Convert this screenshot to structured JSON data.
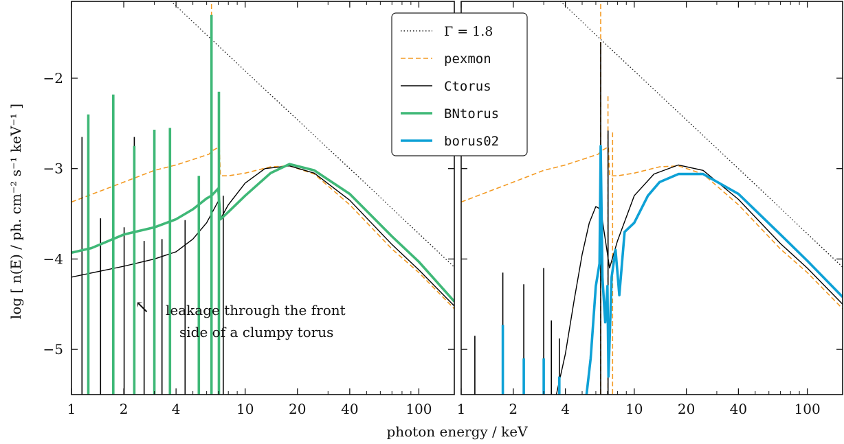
{
  "figure": {
    "ylabel": "log [ n(E) / ph. cm⁻² s⁻¹ keV⁻¹ ]",
    "xlabel": "photon energy / keV"
  },
  "legend": {
    "placement": "top-center",
    "entries": [
      {
        "label": "Γ = 1.8",
        "color": "#222222",
        "style": "dotted"
      },
      {
        "label": "pexmon",
        "color": "#f39a22",
        "style": "dashed"
      },
      {
        "label": "Ctorus",
        "color": "#000000",
        "style": "solid"
      },
      {
        "label": "BNtorus",
        "color": "#3fb877",
        "style": "thick"
      },
      {
        "label": "borus02",
        "color": "#0ea1d6",
        "style": "thick"
      }
    ]
  },
  "annotation": {
    "arrow_glyph": "↖",
    "line1": "leakage through the front",
    "line2": "side of a clumpy torus"
  },
  "chart_data": [
    {
      "type": "line",
      "panel": "left",
      "x_scale": "log",
      "xlim": [
        1,
        160
      ],
      "ylim": [
        -5.5,
        -1.15
      ],
      "x_ticks": [
        1,
        2,
        4,
        10,
        20,
        40,
        100
      ],
      "y_ticks": [
        -5,
        -4,
        -3,
        -2
      ],
      "ylabel": "log [ n(E) / ph. cm⁻² s⁻¹ keV⁻¹ ]",
      "series": [
        {
          "name": "Γ = 1.8",
          "x": [
            1,
            4,
            6,
            10,
            20,
            40,
            100,
            160
          ],
          "y": [
            -0.12,
            -1.2,
            -1.52,
            -1.92,
            -2.46,
            -3.0,
            -3.72,
            -4.09
          ]
        },
        {
          "name": "pexmon",
          "x": [
            1,
            2,
            3,
            4,
            5,
            6.2,
            6.5,
            7.1,
            7.2,
            8,
            10,
            14,
            18,
            25,
            40,
            70,
            100,
            160
          ],
          "y": [
            -3.37,
            -3.15,
            -3.02,
            -2.96,
            -2.9,
            -2.84,
            -2.8,
            -2.76,
            -3.08,
            -3.08,
            -3.05,
            -2.98,
            -2.97,
            -3.06,
            -3.4,
            -3.89,
            -4.15,
            -4.55
          ],
          "lines": [
            {
              "x": 6.4,
              "top": -1.18
            },
            {
              "x": 7.05,
              "top": -2.6
            }
          ]
        },
        {
          "name": "Ctorus",
          "x": [
            1,
            2,
            3,
            4,
            5,
            6,
            6.4,
            7.0,
            7.1,
            8,
            10,
            13,
            18,
            25,
            40,
            70,
            100,
            160
          ],
          "y": [
            -4.2,
            -4.08,
            -4.0,
            -3.92,
            -3.78,
            -3.6,
            -3.5,
            -3.36,
            -3.58,
            -3.4,
            -3.16,
            -3.0,
            -2.97,
            -3.05,
            -3.35,
            -3.84,
            -4.12,
            -4.52
          ],
          "lines": [
            {
              "x": 1.15,
              "top": -2.65
            },
            {
              "x": 1.47,
              "top": -3.55
            },
            {
              "x": 1.74,
              "top": -2.52
            },
            {
              "x": 2.01,
              "top": -3.65
            },
            {
              "x": 2.3,
              "top": -2.65
            },
            {
              "x": 2.62,
              "top": -3.8
            },
            {
              "x": 3.0,
              "top": -2.72
            },
            {
              "x": 3.32,
              "top": -3.78
            },
            {
              "x": 3.69,
              "top": -3.0
            },
            {
              "x": 4.51,
              "top": -3.57
            },
            {
              "x": 5.41,
              "top": -3.5
            },
            {
              "x": 6.4,
              "top": -1.6
            },
            {
              "x": 7.06,
              "top": -2.4
            },
            {
              "x": 7.48,
              "top": -3.3
            }
          ]
        },
        {
          "name": "BNtorus",
          "x": [
            1,
            1.3,
            2,
            3,
            4,
            5,
            6,
            6.4,
            7.0,
            7.2,
            8,
            10,
            14,
            18,
            25,
            40,
            70,
            100,
            160
          ],
          "y": [
            -3.93,
            -3.88,
            -3.73,
            -3.65,
            -3.56,
            -3.45,
            -3.33,
            -3.3,
            -3.22,
            -3.56,
            -3.48,
            -3.3,
            -3.05,
            -2.95,
            -3.02,
            -3.28,
            -3.75,
            -4.03,
            -4.47
          ],
          "lines": [
            {
              "x": 1.25,
              "top": -2.4
            },
            {
              "x": 1.74,
              "top": -2.18
            },
            {
              "x": 2.3,
              "top": -2.75
            },
            {
              "x": 3.0,
              "top": -2.57
            },
            {
              "x": 3.69,
              "top": -2.55
            },
            {
              "x": 5.41,
              "top": -3.08
            },
            {
              "x": 6.4,
              "top": -1.3
            },
            {
              "x": 7.06,
              "top": -2.15
            }
          ]
        }
      ]
    },
    {
      "type": "line",
      "panel": "right",
      "x_scale": "log",
      "xlim": [
        1,
        160
      ],
      "ylim": [
        -5.5,
        -1.15
      ],
      "x_ticks": [
        1,
        2,
        4,
        10,
        20,
        40,
        100
      ],
      "y_ticks": [
        -5,
        -4,
        -3,
        -2
      ],
      "series": [
        {
          "name": "Γ = 1.8",
          "x": [
            1,
            4,
            6,
            10,
            20,
            40,
            100,
            160
          ],
          "y": [
            -0.12,
            -1.2,
            -1.52,
            -1.92,
            -2.46,
            -3.0,
            -3.72,
            -4.09
          ]
        },
        {
          "name": "pexmon",
          "x": [
            1,
            2,
            3,
            4,
            5,
            6.2,
            6.5,
            7.1,
            7.2,
            8,
            10,
            14,
            18,
            25,
            40,
            70,
            100,
            160
          ],
          "y": [
            -3.37,
            -3.15,
            -3.02,
            -2.96,
            -2.9,
            -2.84,
            -2.8,
            -2.76,
            -3.08,
            -3.08,
            -3.05,
            -2.98,
            -2.97,
            -3.06,
            -3.4,
            -3.89,
            -4.15,
            -4.55
          ],
          "lines": [
            {
              "x": 6.4,
              "top": -1.18
            },
            {
              "x": 7.05,
              "top": -2.2
            },
            {
              "x": 7.5,
              "top": -2.6
            }
          ]
        },
        {
          "name": "Ctorus",
          "x": [
            3.55,
            4,
            4.5,
            5,
            5.5,
            6,
            6.4,
            6.8,
            7.2,
            8,
            10,
            13,
            18,
            25,
            40,
            70,
            100,
            160
          ],
          "y": [
            -5.5,
            -5.05,
            -4.45,
            -3.95,
            -3.6,
            -3.42,
            -3.45,
            -3.78,
            -4.1,
            -3.8,
            -3.3,
            -3.06,
            -2.96,
            -3.02,
            -3.34,
            -3.83,
            -4.1,
            -4.5
          ],
          "lines": [
            {
              "x": 1.2,
              "top": -4.85
            },
            {
              "x": 1.74,
              "top": -4.15
            },
            {
              "x": 2.3,
              "top": -4.28
            },
            {
              "x": 3.0,
              "top": -4.1
            },
            {
              "x": 3.32,
              "top": -4.68
            },
            {
              "x": 3.69,
              "top": -4.88
            },
            {
              "x": 6.4,
              "top": -1.6
            },
            {
              "x": 7.06,
              "top": -2.58
            }
          ]
        },
        {
          "name": "borus02",
          "x": [
            5.3,
            5.6,
            6.0,
            6.3,
            6.4,
            6.55,
            6.8,
            7.0,
            7.1,
            7.4,
            7.8,
            8.2,
            8.8,
            10,
            12,
            14,
            18,
            25,
            40,
            70,
            100,
            160
          ],
          "y": [
            -5.5,
            -5.1,
            -4.3,
            -4.05,
            -2.75,
            -4.2,
            -4.7,
            -4.3,
            -5.3,
            -4.2,
            -3.9,
            -4.4,
            -3.7,
            -3.6,
            -3.3,
            -3.15,
            -3.06,
            -3.06,
            -3.28,
            -3.73,
            -4.02,
            -4.42
          ],
          "lines": [
            {
              "x": 1.74,
              "top": -4.73
            },
            {
              "x": 2.3,
              "top": -5.1
            },
            {
              "x": 3.0,
              "top": -5.1
            },
            {
              "x": 3.69,
              "top": -5.3
            }
          ]
        }
      ]
    }
  ]
}
